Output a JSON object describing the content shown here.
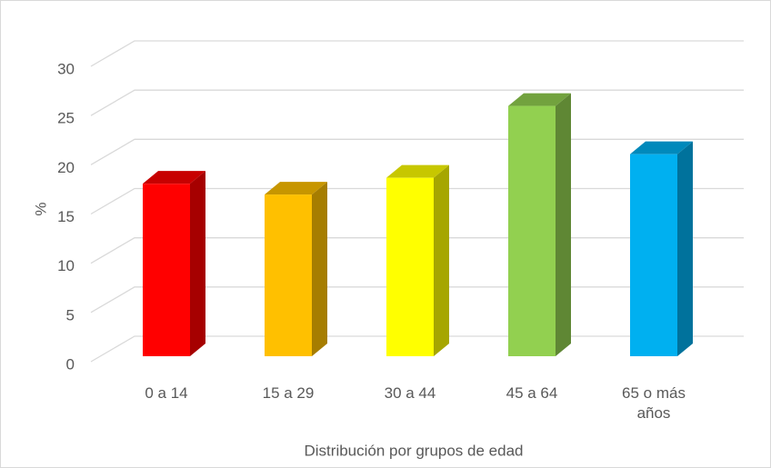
{
  "chart_data": {
    "type": "bar3d",
    "categories": [
      "0 a 14",
      "15 a 29",
      "30 a 44",
      "45 a 64",
      "65 o más años"
    ],
    "values": [
      17.8,
      16.7,
      18.4,
      25.7,
      20.8
    ],
    "colors": [
      "#ff0000",
      "#ffc000",
      "#ffff00",
      "#92d050",
      "#00b0f0"
    ],
    "ylabel": "%",
    "xlabel": "Distribución por grupos de edad",
    "ylim": [
      0,
      30
    ],
    "yticks": [
      0,
      5,
      10,
      15,
      20,
      25,
      30
    ],
    "grid": true
  }
}
